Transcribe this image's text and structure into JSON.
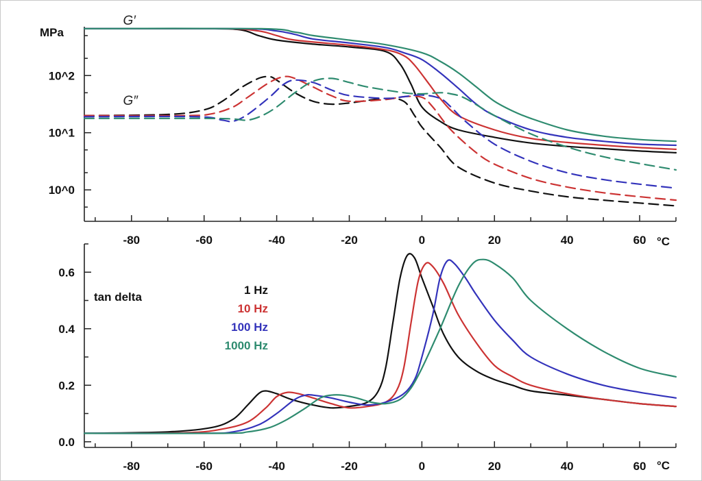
{
  "chart_data": [
    {
      "type": "line",
      "y_scale": "log",
      "ylabel": "MPa",
      "xlabel_unit": "°C",
      "xlim": [
        -93,
        70
      ],
      "ylim_exp": [
        -0.55,
        2.95
      ],
      "x_ticks": [
        -80,
        -60,
        -40,
        -20,
        0,
        20,
        40,
        60
      ],
      "y_tick_labels": [
        {
          "label": "10^2",
          "exp": 2
        },
        {
          "label": "10^1",
          "exp": 1
        },
        {
          "label": "10^0",
          "exp": 0
        }
      ],
      "annotations": [
        {
          "text": "G′",
          "x": -88,
          "exp": 3.25
        },
        {
          "text": "G″",
          "x": -88,
          "exp": 1.75
        }
      ],
      "series": [
        {
          "modulus": "G′",
          "frequency": "1 Hz",
          "color": "#111111",
          "dashed": false,
          "x": [
            -93,
            -60,
            -50,
            -45,
            -40,
            -30,
            -20,
            -10,
            -6,
            -3,
            0,
            5,
            10,
            20,
            30,
            40,
            50,
            60,
            70
          ],
          "exp": [
            2.82,
            2.82,
            2.8,
            2.7,
            2.62,
            2.55,
            2.5,
            2.42,
            2.2,
            1.85,
            1.45,
            1.2,
            1.05,
            0.92,
            0.82,
            0.76,
            0.72,
            0.68,
            0.65
          ]
        },
        {
          "modulus": "G′",
          "frequency": "10 Hz",
          "color": "#cc3333",
          "dashed": false,
          "x": [
            -93,
            -55,
            -45,
            -40,
            -35,
            -20,
            -10,
            -5,
            -2,
            2,
            5,
            10,
            20,
            30,
            40,
            50,
            60,
            70
          ],
          "exp": [
            2.82,
            2.82,
            2.78,
            2.7,
            2.62,
            2.53,
            2.45,
            2.35,
            2.18,
            1.85,
            1.6,
            1.3,
            1.05,
            0.9,
            0.83,
            0.78,
            0.74,
            0.71
          ]
        },
        {
          "modulus": "G′",
          "frequency": "100 Hz",
          "color": "#3333bb",
          "dashed": false,
          "x": [
            -93,
            -50,
            -40,
            -35,
            -30,
            -20,
            -10,
            -5,
            0,
            5,
            10,
            15,
            20,
            30,
            40,
            50,
            60,
            70
          ],
          "exp": [
            2.82,
            2.82,
            2.78,
            2.72,
            2.64,
            2.57,
            2.49,
            2.4,
            2.28,
            2.05,
            1.78,
            1.5,
            1.3,
            1.05,
            0.92,
            0.85,
            0.8,
            0.78
          ]
        },
        {
          "modulus": "G′",
          "frequency": "1000 Hz",
          "color": "#2e8b6f",
          "dashed": false,
          "x": [
            -93,
            -45,
            -35,
            -30,
            -20,
            -10,
            0,
            5,
            10,
            15,
            20,
            25,
            30,
            40,
            50,
            60,
            70
          ],
          "exp": [
            2.82,
            2.82,
            2.76,
            2.7,
            2.62,
            2.54,
            2.4,
            2.25,
            2.05,
            1.8,
            1.55,
            1.38,
            1.25,
            1.05,
            0.94,
            0.88,
            0.85
          ]
        },
        {
          "modulus": "G″",
          "frequency": "1 Hz",
          "color": "#111111",
          "dashed": true,
          "x": [
            -93,
            -70,
            -60,
            -55,
            -50,
            -45,
            -42,
            -40,
            -35,
            -30,
            -25,
            -20,
            -10,
            -5,
            -2,
            0,
            5,
            10,
            20,
            30,
            40,
            50,
            60,
            70
          ],
          "exp": [
            1.3,
            1.32,
            1.4,
            1.55,
            1.78,
            1.95,
            1.98,
            1.92,
            1.7,
            1.55,
            1.5,
            1.52,
            1.6,
            1.55,
            1.3,
            1.1,
            0.75,
            0.4,
            0.12,
            -0.02,
            -0.12,
            -0.18,
            -0.23,
            -0.28
          ]
        },
        {
          "modulus": "G″",
          "frequency": "10 Hz",
          "color": "#cc3333",
          "dashed": true,
          "x": [
            -93,
            -65,
            -58,
            -52,
            -48,
            -42,
            -38,
            -35,
            -30,
            -25,
            -20,
            -10,
            -5,
            0,
            3,
            8,
            15,
            20,
            30,
            40,
            50,
            60,
            70
          ],
          "exp": [
            1.3,
            1.3,
            1.33,
            1.45,
            1.62,
            1.88,
            1.98,
            1.95,
            1.8,
            1.65,
            1.55,
            1.58,
            1.63,
            1.62,
            1.45,
            1.05,
            0.65,
            0.45,
            0.2,
            0.05,
            -0.05,
            -0.12,
            -0.18
          ]
        },
        {
          "modulus": "G″",
          "frequency": "100 Hz",
          "color": "#3333bb",
          "dashed": true,
          "x": [
            -93,
            -62,
            -55,
            -52,
            -48,
            -42,
            -38,
            -35,
            -30,
            -25,
            -20,
            -10,
            -5,
            0,
            5,
            8,
            12,
            20,
            30,
            40,
            50,
            60,
            70
          ],
          "exp": [
            1.28,
            1.28,
            1.22,
            1.2,
            1.32,
            1.62,
            1.85,
            1.92,
            1.88,
            1.75,
            1.65,
            1.6,
            1.63,
            1.66,
            1.6,
            1.45,
            1.2,
            0.8,
            0.5,
            0.3,
            0.18,
            0.1,
            0.03
          ]
        },
        {
          "modulus": "G″",
          "frequency": "1000 Hz",
          "color": "#2e8b6f",
          "dashed": true,
          "x": [
            -93,
            -60,
            -52,
            -48,
            -44,
            -40,
            -35,
            -30,
            -25,
            -20,
            -15,
            -5,
            0,
            5,
            8,
            12,
            20,
            30,
            40,
            50,
            60,
            70
          ],
          "exp": [
            1.25,
            1.25,
            1.24,
            1.22,
            1.3,
            1.45,
            1.7,
            1.9,
            1.95,
            1.88,
            1.8,
            1.7,
            1.68,
            1.7,
            1.68,
            1.6,
            1.3,
            0.98,
            0.75,
            0.58,
            0.46,
            0.35
          ]
        }
      ]
    },
    {
      "type": "line",
      "title": "tan delta",
      "xlabel_unit": "°C",
      "xlim": [
        -93,
        70
      ],
      "ylim": [
        -0.02,
        0.7
      ],
      "x_ticks": [
        -80,
        -60,
        -40,
        -20,
        0,
        20,
        40,
        60
      ],
      "y_ticks": [
        0.0,
        0.2,
        0.4,
        0.6
      ],
      "y_tick_labels": [
        "0.0",
        "0.2",
        "0.4",
        "0.6"
      ],
      "legend": [
        {
          "label": "1 Hz",
          "color": "#111111"
        },
        {
          "label": "10 Hz",
          "color": "#cc3333"
        },
        {
          "label": "100 Hz",
          "color": "#3333bb"
        },
        {
          "label": "1000 Hz",
          "color": "#2e8b6f"
        }
      ],
      "series": [
        {
          "name": "1 Hz",
          "color": "#111111",
          "x": [
            -93,
            -70,
            -58,
            -52,
            -48,
            -45,
            -43,
            -40,
            -36,
            -30,
            -25,
            -20,
            -15,
            -12,
            -10,
            -8,
            -6,
            -4,
            -2,
            0,
            3,
            6,
            10,
            15,
            20,
            25,
            30,
            40,
            50,
            60,
            70
          ],
          "y": [
            0.03,
            0.035,
            0.05,
            0.08,
            0.13,
            0.17,
            0.18,
            0.17,
            0.15,
            0.13,
            0.12,
            0.125,
            0.14,
            0.18,
            0.26,
            0.42,
            0.58,
            0.66,
            0.65,
            0.58,
            0.48,
            0.38,
            0.3,
            0.25,
            0.22,
            0.2,
            0.18,
            0.165,
            0.15,
            0.135,
            0.125
          ]
        },
        {
          "name": "10 Hz",
          "color": "#cc3333",
          "x": [
            -93,
            -65,
            -55,
            -48,
            -43,
            -40,
            -37,
            -34,
            -30,
            -25,
            -20,
            -15,
            -10,
            -7,
            -5,
            -3,
            -1,
            1,
            3,
            6,
            10,
            15,
            20,
            25,
            30,
            40,
            50,
            60,
            70
          ],
          "y": [
            0.03,
            0.032,
            0.045,
            0.07,
            0.12,
            0.16,
            0.175,
            0.17,
            0.155,
            0.135,
            0.12,
            0.125,
            0.14,
            0.18,
            0.26,
            0.42,
            0.57,
            0.63,
            0.62,
            0.56,
            0.45,
            0.35,
            0.27,
            0.23,
            0.2,
            0.17,
            0.15,
            0.135,
            0.125
          ]
        },
        {
          "name": "100 Hz",
          "color": "#3333bb",
          "x": [
            -93,
            -60,
            -52,
            -45,
            -40,
            -35,
            -32,
            -30,
            -25,
            -20,
            -15,
            -10,
            -5,
            -2,
            0,
            3,
            5,
            7,
            9,
            12,
            15,
            20,
            25,
            30,
            40,
            50,
            60,
            70
          ],
          "y": [
            0.03,
            0.03,
            0.035,
            0.06,
            0.1,
            0.15,
            0.165,
            0.165,
            0.155,
            0.14,
            0.13,
            0.14,
            0.17,
            0.22,
            0.3,
            0.45,
            0.58,
            0.64,
            0.63,
            0.58,
            0.52,
            0.43,
            0.36,
            0.3,
            0.24,
            0.2,
            0.175,
            0.155
          ]
        },
        {
          "name": "1000 Hz",
          "color": "#2e8b6f",
          "x": [
            -93,
            -55,
            -48,
            -42,
            -37,
            -32,
            -28,
            -25,
            -22,
            -18,
            -14,
            -10,
            -6,
            -3,
            0,
            5,
            10,
            14,
            17,
            20,
            25,
            30,
            40,
            50,
            60,
            70
          ],
          "y": [
            0.03,
            0.03,
            0.035,
            0.05,
            0.08,
            0.12,
            0.155,
            0.165,
            0.165,
            0.155,
            0.14,
            0.135,
            0.15,
            0.19,
            0.26,
            0.4,
            0.55,
            0.63,
            0.645,
            0.63,
            0.58,
            0.5,
            0.4,
            0.32,
            0.26,
            0.23
          ]
        }
      ]
    }
  ]
}
